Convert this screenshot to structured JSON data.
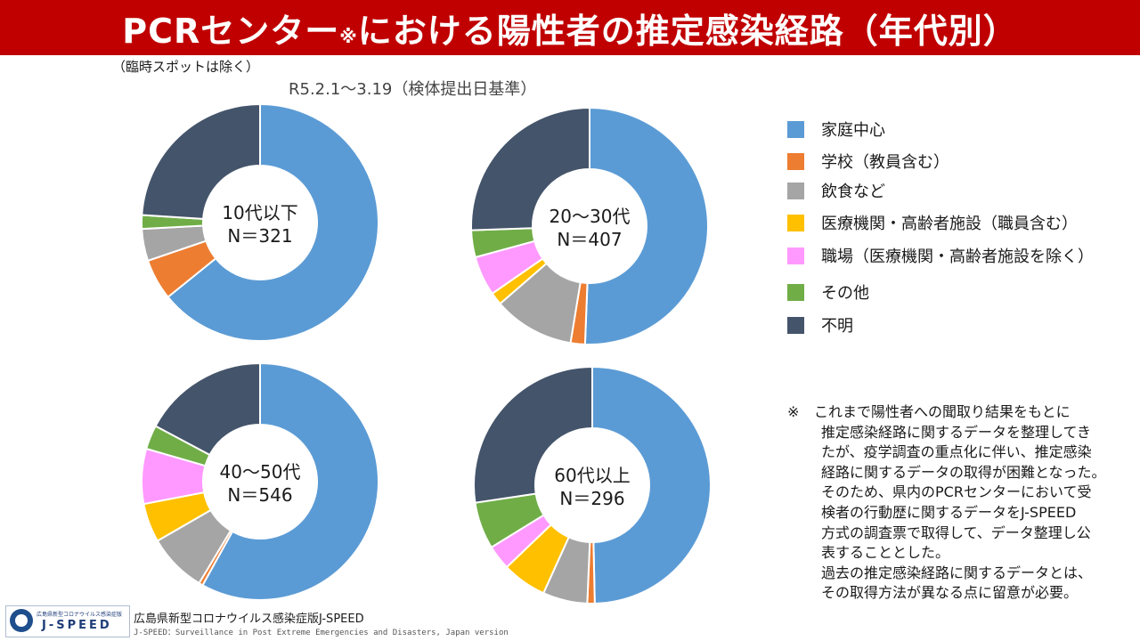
{
  "header": {
    "title_main": "PCRセンター",
    "title_mark": "※",
    "title_rest": "における陽性者の推定感染経路（年代別）"
  },
  "subnote": "（臨時スポットは除く）",
  "period": "R5.2.1～3.19（検体提出日基準）",
  "legend": [
    {
      "label": "家庭中心",
      "color": "#5b9bd5"
    },
    {
      "label": "学校（教員含む）",
      "color": "#ed7d31"
    },
    {
      "label": "飲食など",
      "color": "#a5a5a5"
    },
    {
      "label": "医療機関・高齢者施設（職員含む）",
      "color": "#ffc000"
    },
    {
      "label": "職場（医療機関・高齢者施設を除く）",
      "color": "#ff99ff"
    },
    {
      "label": "その他",
      "color": "#70ad47"
    },
    {
      "label": "不明",
      "color": "#44546a"
    }
  ],
  "chart_data": [
    {
      "type": "pie",
      "name": "10代以下",
      "n_label": "N＝321",
      "categories": [
        "家庭中心",
        "学校（教員含む）",
        "飲食など",
        "医療機関・高齢者施設（職員含む）",
        "職場（医療機関・高齢者施設を除く）",
        "その他",
        "不明"
      ],
      "values": [
        206,
        18,
        14,
        0,
        0,
        6,
        77
      ]
    },
    {
      "type": "pie",
      "name": "20～30代",
      "n_label": "N＝407",
      "categories": [
        "家庭中心",
        "学校（教員含む）",
        "飲食など",
        "医療機関・高齢者施設（職員含む）",
        "職場（医療機関・高齢者施設を除く）",
        "その他",
        "不明"
      ],
      "values": [
        206,
        8,
        45,
        7,
        22,
        15,
        104
      ]
    },
    {
      "type": "pie",
      "name": "40～50代",
      "n_label": "N＝546",
      "categories": [
        "家庭中心",
        "学校（教員含む）",
        "飲食など",
        "医療機関・高齢者施設（職員含む）",
        "職場（医療機関・高齢者施設を除く）",
        "その他",
        "不明"
      ],
      "values": [
        317,
        3,
        44,
        29,
        41,
        18,
        94
      ]
    },
    {
      "type": "pie",
      "name": "60代以上",
      "n_label": "N＝296",
      "categories": [
        "家庭中心",
        "学校（教員含む）",
        "飲食など",
        "医療機関・高齢者施設（職員含む）",
        "職場（医療機関・高齢者施設を除く）",
        "その他",
        "不明"
      ],
      "values": [
        147,
        3,
        18,
        18,
        10,
        19,
        81
      ]
    }
  ],
  "footnote": {
    "mark": "※",
    "lines": [
      "これまで陽性者への聞取り結果をもとに",
      "推定感染経路に関するデータを整理してき",
      "たが、疫学調査の重点化に伴い、推定感染",
      "経路に関するデータの取得が困難となった。",
      "そのため、県内のPCRセンターにおいて受",
      "検者の行動歴に関するデータをJ-SPEED",
      "方式の調査票で取得して、データ整理し公",
      "表することとした。",
      "過去の推定感染経路に関するデータとは、",
      "その取得方法が異なる点に留意が必要。"
    ]
  },
  "footer": {
    "logo_small": "広島県新型コロナウイルス感染症版",
    "logo_big": "J-SPEED",
    "name": "広島県新型コロナウイルス感染症版J-SPEED",
    "sub": "J-SPEED：Surveillance in Post Extreme Emergencies and Disasters, Japan version"
  }
}
